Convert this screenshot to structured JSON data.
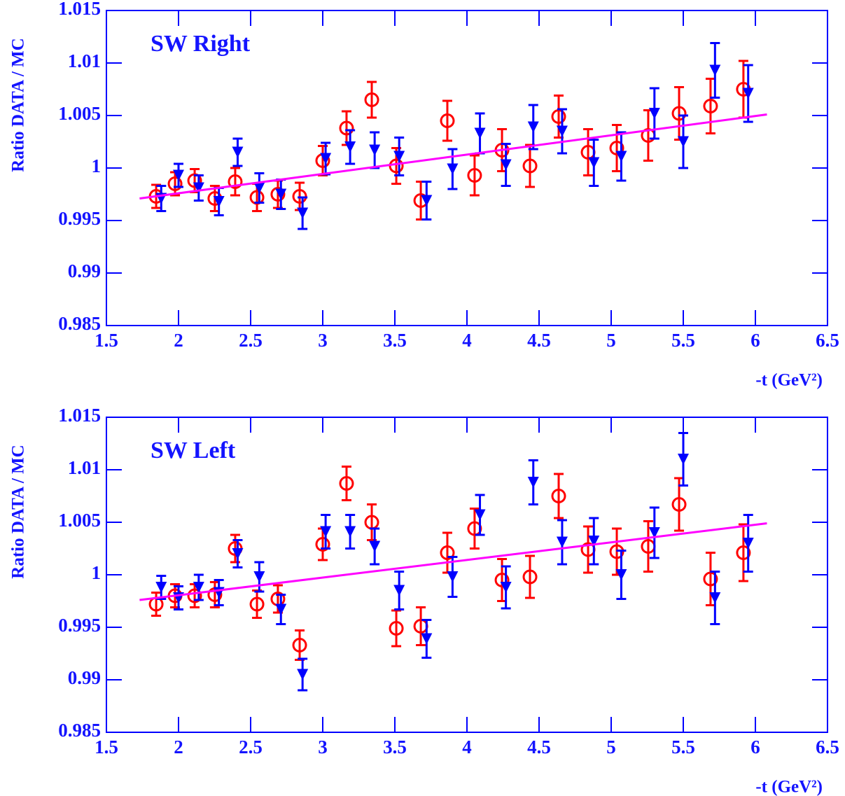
{
  "chart_data": [
    {
      "type": "scatter",
      "title": "SW Right",
      "xlabel": "-t (GeV²)",
      "ylabel": "Ratio DATA / MC",
      "xlim": [
        1.5,
        6.5
      ],
      "ylim": [
        0.985,
        1.015
      ],
      "xticks": [
        1.5,
        2,
        2.5,
        3,
        3.5,
        4,
        4.5,
        5,
        5.5,
        6,
        6.5
      ],
      "yticks": [
        0.985,
        0.99,
        0.995,
        1,
        1.005,
        1.01,
        1.015
      ],
      "series": [
        {
          "marker": "circle",
          "color": "#ff0000",
          "x": [
            1.845,
            1.976,
            2.112,
            2.252,
            2.393,
            2.544,
            2.689,
            2.84,
            3.0,
            3.165,
            3.34,
            3.51,
            3.68,
            3.864,
            4.053,
            4.243,
            4.437,
            4.636,
            4.84,
            5.039,
            5.257,
            5.471,
            5.689,
            5.917
          ],
          "values": [
            0.9973,
            0.9985,
            0.9988,
            0.9971,
            0.9987,
            0.9972,
            0.9975,
            0.9973,
            1.0007,
            1.0038,
            1.0065,
            1.0002,
            0.9969,
            1.0045,
            0.9993,
            1.0017,
            1.0002,
            1.0049,
            1.0015,
            1.0019,
            1.0031,
            1.0052,
            1.0059,
            1.0075
          ],
          "errors": [
            0.0011,
            0.0011,
            0.0011,
            0.0012,
            0.0013,
            0.0013,
            0.0013,
            0.0013,
            0.0014,
            0.0016,
            0.0017,
            0.0017,
            0.0018,
            0.0019,
            0.0019,
            0.002,
            0.002,
            0.002,
            0.0022,
            0.0022,
            0.0024,
            0.0025,
            0.0026,
            0.0027
          ]
        },
        {
          "marker": "triangle-down",
          "color": "#0000ff",
          "x": [
            1.88,
            2.0,
            2.14,
            2.28,
            2.41,
            2.56,
            2.71,
            2.86,
            3.02,
            3.19,
            3.36,
            3.53,
            3.72,
            3.9,
            4.09,
            4.27,
            4.46,
            4.66,
            4.88,
            5.07,
            5.3,
            5.5,
            5.72,
            5.95
          ],
          "values": [
            0.9971,
            0.9993,
            0.9981,
            0.9968,
            1.0015,
            0.9981,
            0.9975,
            0.9957,
            1.0009,
            1.002,
            1.0017,
            1.0011,
            0.9969,
            0.9999,
            1.0033,
            1.0003,
            1.0039,
            1.0035,
            1.0005,
            1.0011,
            1.0052,
            1.0025,
            1.0093,
            1.0071
          ],
          "errors": [
            0.0012,
            0.0011,
            0.0012,
            0.0013,
            0.0013,
            0.0014,
            0.0014,
            0.0015,
            0.0015,
            0.0016,
            0.0017,
            0.0018,
            0.0018,
            0.0019,
            0.0019,
            0.002,
            0.0021,
            0.0021,
            0.0022,
            0.0023,
            0.0024,
            0.0025,
            0.0026,
            0.0027
          ]
        },
        {
          "marker": "line",
          "color": "#ff00ff",
          "x": [
            1.73,
            6.08
          ],
          "values": [
            0.9971,
            1.0051
          ]
        }
      ]
    },
    {
      "type": "scatter",
      "title": "SW Left",
      "xlabel": "-t (GeV²)",
      "ylabel": "Ratio DATA / MC",
      "xlim": [
        1.5,
        6.5
      ],
      "ylim": [
        0.985,
        1.015
      ],
      "xticks": [
        1.5,
        2,
        2.5,
        3,
        3.5,
        4,
        4.5,
        5,
        5.5,
        6,
        6.5
      ],
      "yticks": [
        0.985,
        0.99,
        0.995,
        1,
        1.005,
        1.01,
        1.015
      ],
      "series": [
        {
          "marker": "circle",
          "color": "#ff0000",
          "x": [
            1.845,
            1.976,
            2.112,
            2.252,
            2.393,
            2.544,
            2.689,
            2.84,
            3.0,
            3.165,
            3.34,
            3.51,
            3.68,
            3.864,
            4.053,
            4.243,
            4.437,
            4.636,
            4.84,
            5.039,
            5.257,
            5.471,
            5.689,
            5.917
          ],
          "values": [
            0.9972,
            0.998,
            0.998,
            0.9981,
            1.0025,
            0.9972,
            0.9977,
            0.9933,
            1.0029,
            1.0087,
            1.005,
            0.9949,
            0.9951,
            1.0021,
            1.0044,
            0.9995,
            0.9998,
            1.0075,
            1.0024,
            1.0022,
            1.0027,
            1.0067,
            0.9996,
            1.0021
          ],
          "errors": [
            0.0011,
            0.0011,
            0.0011,
            0.0012,
            0.0013,
            0.0013,
            0.0013,
            0.0014,
            0.0015,
            0.0016,
            0.0017,
            0.0017,
            0.0018,
            0.0019,
            0.0019,
            0.002,
            0.002,
            0.0021,
            0.0022,
            0.0022,
            0.0024,
            0.0025,
            0.0025,
            0.0027
          ]
        },
        {
          "marker": "triangle-down",
          "color": "#0000ff",
          "x": [
            1.88,
            2.0,
            2.14,
            2.28,
            2.41,
            2.56,
            2.71,
            2.86,
            3.02,
            3.19,
            3.36,
            3.53,
            3.72,
            3.9,
            4.09,
            4.27,
            4.46,
            4.66,
            4.88,
            5.07,
            5.3,
            5.5,
            5.72,
            5.95
          ],
          "values": [
            0.9988,
            0.9978,
            0.9988,
            0.9983,
            1.002,
            0.9998,
            0.9967,
            0.9905,
            1.0041,
            1.0041,
            1.0027,
            0.9985,
            0.9939,
            0.9998,
            1.0057,
            0.9988,
            1.0088,
            1.0031,
            1.0032,
            1.0,
            1.004,
            1.011,
            0.9978,
            1.003
          ],
          "errors": [
            0.0011,
            0.0011,
            0.0012,
            0.0012,
            0.0013,
            0.0014,
            0.0014,
            0.0015,
            0.0016,
            0.0016,
            0.0017,
            0.0018,
            0.0018,
            0.0019,
            0.0019,
            0.002,
            0.0021,
            0.0021,
            0.0022,
            0.0023,
            0.0024,
            0.0025,
            0.0025,
            0.0027
          ]
        },
        {
          "marker": "line",
          "color": "#ff00ff",
          "x": [
            1.73,
            6.08
          ],
          "values": [
            0.9976,
            1.0049
          ]
        }
      ]
    }
  ]
}
